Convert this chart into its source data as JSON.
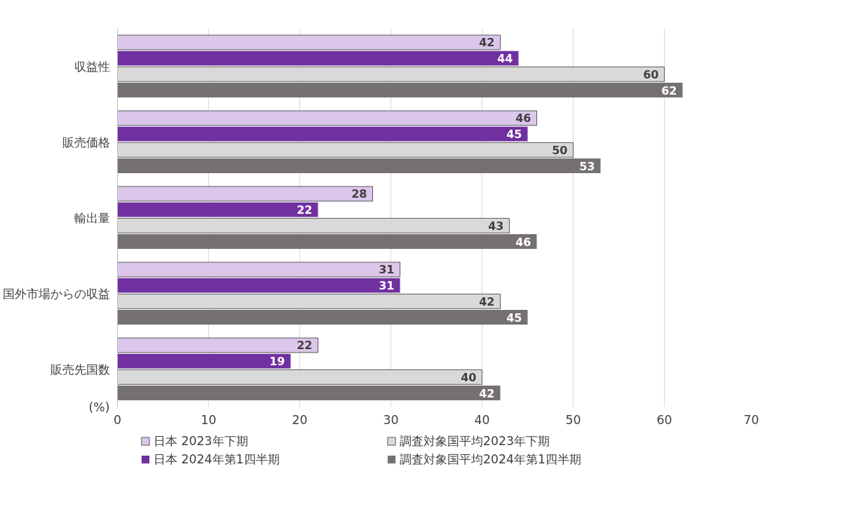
{
  "chart_data": {
    "type": "bar",
    "orientation": "horizontal",
    "xlabel": "(%)",
    "categories": [
      "収益性",
      "販売価格",
      "輸出量",
      "国外市場からの収益",
      "販売先国数"
    ],
    "series": [
      {
        "name": "日本 2023年下期",
        "color": "#dcc6ea",
        "values": [
          42,
          46,
          28,
          31,
          22
        ]
      },
      {
        "name": "日本 2024年第1四半期",
        "color": "#7030a0",
        "values": [
          44,
          45,
          22,
          31,
          19
        ]
      },
      {
        "name": "調査対象国平均2023年下期",
        "color": "#d9d9d9",
        "values": [
          60,
          50,
          43,
          42,
          40
        ]
      },
      {
        "name": "調査対象国平均2024年第1四半期",
        "color": "#767171",
        "values": [
          62,
          53,
          46,
          45,
          42
        ]
      }
    ],
    "xlim": [
      0,
      70
    ],
    "xticks": [
      0,
      10,
      20,
      30,
      40,
      50,
      60,
      70
    ],
    "grid": "x",
    "legend": "bottom",
    "data_labels": true
  }
}
